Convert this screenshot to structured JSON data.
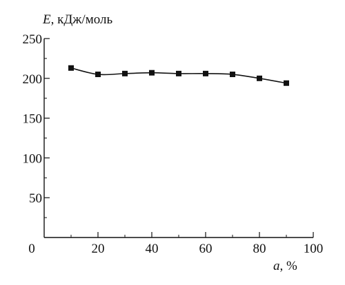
{
  "chart_data": {
    "type": "line",
    "ylabel_var": "E",
    "ylabel_rest": ", кДж/моль",
    "xlabel_var": "a",
    "xlabel_rest": ", %",
    "xlim": [
      0,
      100
    ],
    "ylim": [
      0,
      250
    ],
    "x_ticks": [
      20,
      40,
      60,
      80,
      100
    ],
    "x_tick_labels": [
      "20",
      "40",
      "60",
      "80",
      "100"
    ],
    "y_ticks": [
      50,
      100,
      150,
      200,
      250
    ],
    "y_tick_labels": [
      "50",
      "100",
      "150",
      "200",
      "250"
    ],
    "origin_label": "0",
    "grid": false,
    "series": [
      {
        "x": [
          10,
          20,
          30,
          40,
          50,
          60,
          70,
          80,
          90
        ],
        "y": [
          213,
          205,
          206,
          207,
          206,
          206,
          205,
          200,
          194
        ],
        "marker": "square",
        "color": "#111111"
      }
    ]
  }
}
